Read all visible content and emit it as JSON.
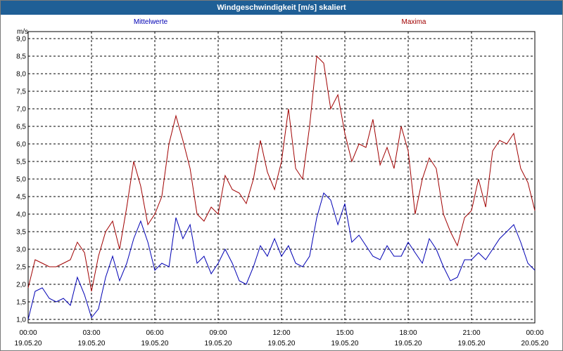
{
  "window": {
    "title": "Windgeschwindigkeit [m/s] skaliert"
  },
  "colors": {
    "title_bar": "#1f5f96",
    "mittelwerte": "#0000b4",
    "maxima": "#a00000",
    "grid": "#000000"
  },
  "chart_data": {
    "type": "line",
    "title": "Windgeschwindigkeit [m/s] skaliert",
    "ylabel": "m/s",
    "ylim": [
      0.9,
      9.2
    ],
    "y_ticks": [
      "1,0",
      "1,5",
      "2,0",
      "2,5",
      "3,0",
      "3,5",
      "4,0",
      "4,5",
      "5,0",
      "5,5",
      "6,0",
      "6,5",
      "7,0",
      "7,5",
      "8,0",
      "8,5",
      "9,0"
    ],
    "x_range_hours": [
      0,
      24
    ],
    "x_ticks": [
      {
        "time": "00:00",
        "date": "19.05.20"
      },
      {
        "time": "03:00",
        "date": "19.05.20"
      },
      {
        "time": "06:00",
        "date": "19.05.20"
      },
      {
        "time": "09:00",
        "date": "19.05.20"
      },
      {
        "time": "12:00",
        "date": "19.05.20"
      },
      {
        "time": "15:00",
        "date": "19.05.20"
      },
      {
        "time": "18:00",
        "date": "19.05.20"
      },
      {
        "time": "21:00",
        "date": "19.05.20"
      },
      {
        "time": "00:00",
        "date": "20.05.20"
      }
    ],
    "grid": true,
    "legend_placement": "top",
    "series": [
      {
        "name": "Mittelwerte",
        "x": [
          0,
          0.33,
          0.67,
          1,
          1.33,
          1.67,
          2,
          2.33,
          2.67,
          3,
          3.33,
          3.67,
          4,
          4.33,
          4.67,
          5,
          5.33,
          5.67,
          6,
          6.33,
          6.67,
          7,
          7.33,
          7.67,
          8,
          8.33,
          8.67,
          9,
          9.33,
          9.67,
          10,
          10.33,
          10.67,
          11,
          11.33,
          11.67,
          12,
          12.33,
          12.67,
          13,
          13.33,
          13.67,
          14,
          14.33,
          14.67,
          15,
          15.33,
          15.67,
          16,
          16.33,
          16.67,
          17,
          17.33,
          17.67,
          18,
          18.33,
          18.67,
          19,
          19.33,
          19.67,
          20,
          20.33,
          20.67,
          21,
          21.33,
          21.67,
          22,
          22.33,
          22.67,
          23,
          23.33,
          23.67,
          24
        ],
        "values": [
          1.0,
          1.8,
          1.9,
          1.6,
          1.5,
          1.6,
          1.4,
          2.2,
          1.7,
          1.05,
          1.3,
          2.2,
          2.8,
          2.1,
          2.6,
          3.3,
          3.8,
          3.2,
          2.4,
          2.6,
          2.5,
          3.9,
          3.3,
          3.7,
          2.6,
          2.8,
          2.3,
          2.6,
          3.0,
          2.6,
          2.1,
          2.0,
          2.5,
          3.1,
          2.8,
          3.3,
          2.8,
          3.1,
          2.6,
          2.5,
          2.8,
          3.9,
          4.6,
          4.4,
          3.7,
          4.3,
          3.2,
          3.4,
          3.1,
          2.8,
          2.7,
          3.1,
          2.8,
          2.8,
          3.2,
          2.9,
          2.6,
          3.3,
          3.0,
          2.5,
          2.1,
          2.2,
          2.7,
          2.7,
          2.9,
          2.7,
          3.0,
          3.3,
          3.5,
          3.7,
          3.2,
          2.6,
          2.4
        ]
      },
      {
        "name": "Maxima",
        "x": [
          0,
          0.33,
          0.67,
          1,
          1.33,
          1.67,
          2,
          2.33,
          2.67,
          3,
          3.33,
          3.67,
          4,
          4.33,
          4.67,
          5,
          5.33,
          5.67,
          6,
          6.33,
          6.67,
          7,
          7.33,
          7.67,
          8,
          8.33,
          8.67,
          9,
          9.33,
          9.67,
          10,
          10.33,
          10.67,
          11,
          11.33,
          11.67,
          12,
          12.33,
          12.67,
          13,
          13.33,
          13.67,
          14,
          14.33,
          14.67,
          15,
          15.33,
          15.67,
          16,
          16.33,
          16.67,
          17,
          17.33,
          17.67,
          18,
          18.33,
          18.67,
          19,
          19.33,
          19.67,
          20,
          20.33,
          20.67,
          21,
          21.33,
          21.67,
          22,
          22.33,
          22.67,
          23,
          23.33,
          23.67,
          24
        ],
        "values": [
          1.9,
          2.7,
          2.6,
          2.5,
          2.5,
          2.6,
          2.7,
          3.2,
          2.9,
          1.8,
          2.8,
          3.5,
          3.8,
          3.0,
          4.2,
          5.5,
          4.8,
          3.7,
          4.0,
          4.5,
          6.0,
          6.8,
          6.1,
          5.3,
          4.0,
          3.8,
          4.2,
          4.0,
          5.1,
          4.7,
          4.6,
          4.3,
          5.0,
          6.1,
          5.2,
          4.7,
          5.5,
          7.0,
          5.3,
          5.0,
          6.5,
          8.5,
          8.3,
          7.0,
          7.4,
          6.3,
          5.5,
          6.0,
          5.9,
          6.7,
          5.4,
          5.9,
          5.3,
          6.5,
          5.8,
          4.0,
          5.0,
          5.6,
          5.3,
          4.0,
          3.5,
          3.1,
          3.9,
          4.1,
          5.0,
          4.2,
          5.8,
          6.1,
          6.0,
          6.3,
          5.3,
          4.9,
          4.1
        ]
      }
    ]
  }
}
